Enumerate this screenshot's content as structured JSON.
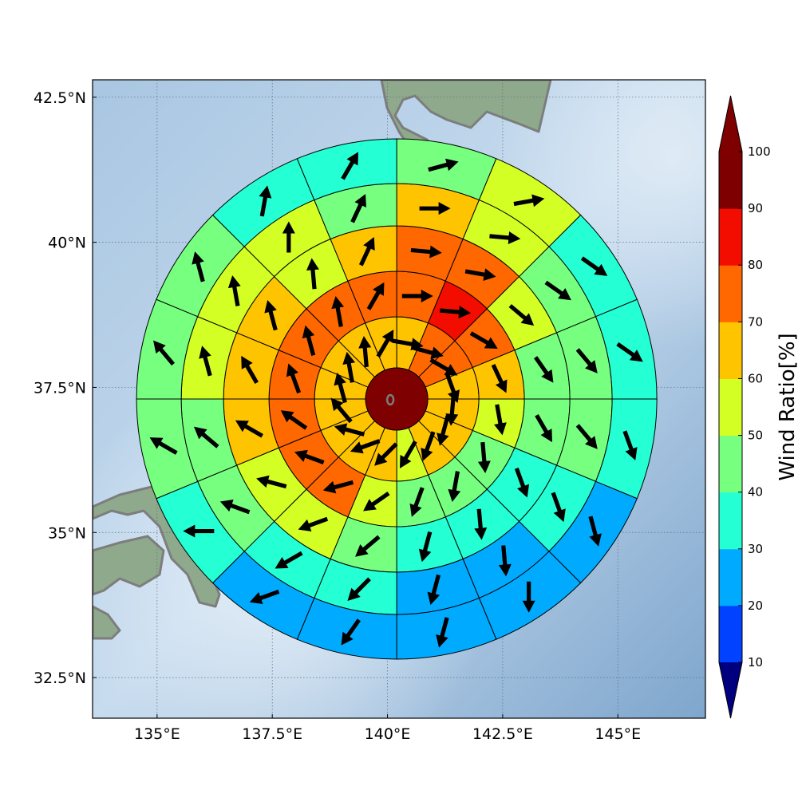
{
  "map": {
    "lon_range": [
      133.6,
      146.9
    ],
    "lat_range": [
      31.8,
      42.8
    ],
    "lon_ticks": [
      {
        "value": 135.0,
        "label": "135°E"
      },
      {
        "value": 137.5,
        "label": "137.5°E"
      },
      {
        "value": 140.0,
        "label": "140°E"
      },
      {
        "value": 142.5,
        "label": "142.5°E"
      },
      {
        "value": 145.0,
        "label": "145°E"
      }
    ],
    "lat_ticks": [
      {
        "value": 42.5,
        "label": "42.5°N"
      },
      {
        "value": 40.0,
        "label": "40°N"
      },
      {
        "value": 37.5,
        "label": "37.5°N"
      },
      {
        "value": 35.0,
        "label": "35°N"
      },
      {
        "value": 32.5,
        "label": "32.5°N"
      }
    ],
    "grid": true,
    "background": "shaded-relief",
    "colors": {
      "ocean_light": "#c9ddef",
      "ocean_dark": "#8aaed0",
      "land": "#8fa98c",
      "coastline": "#7d7d7d"
    }
  },
  "chart_data": {
    "type": "polar-sector-heatmap",
    "center": {
      "lon": 140.2,
      "lat": 37.3
    },
    "center_value": 100,
    "sectors": 16,
    "rings": [
      {
        "values": [
          65,
          70,
          70,
          62,
          62,
          62,
          65,
          55,
          62,
          60,
          62,
          65,
          62,
          62,
          62,
          62
        ],
        "arrows": [
          100,
          105,
          120,
          160,
          185,
          195,
          200,
          210,
          225,
          250,
          285,
          320,
          345,
          350,
          355,
          30
        ]
      },
      {
        "values": [
          75,
          80,
          70,
          62,
          52,
          45,
          45,
          45,
          55,
          70,
          75,
          75,
          70,
          75,
          75,
          75
        ],
        "arrows": [
          90,
          95,
          120,
          155,
          170,
          175,
          190,
          200,
          235,
          255,
          290,
          305,
          340,
          345,
          350,
          30
        ]
      },
      {
        "values": [
          75,
          75,
          50,
          45,
          45,
          35,
          35,
          35,
          45,
          55,
          55,
          62,
          62,
          62,
          52,
          62
        ],
        "arrows": [
          95,
          100,
          130,
          145,
          150,
          160,
          175,
          195,
          230,
          250,
          285,
          300,
          330,
          345,
          355,
          25
        ]
      },
      {
        "values": [
          65,
          55,
          45,
          45,
          45,
          35,
          25,
          25,
          35,
          35,
          45,
          45,
          55,
          52,
          52,
          45
        ],
        "arrows": [
          90,
          95,
          125,
          140,
          140,
          160,
          175,
          195,
          225,
          240,
          290,
          310,
          345,
          350,
          360,
          25
        ]
      },
      {
        "values": [
          45,
          55,
          35,
          35,
          35,
          25,
          25,
          25,
          25,
          25,
          35,
          45,
          45,
          45,
          35,
          35
        ],
        "arrows": [
          75,
          80,
          125,
          125,
          160,
          165,
          180,
          195,
          215,
          250,
          270,
          300,
          320,
          345,
          10,
          30
        ]
      }
    ],
    "colorbar": {
      "label": "Wind Ratio[%]",
      "ticks": [
        10,
        20,
        30,
        40,
        50,
        60,
        70,
        80,
        90,
        100
      ],
      "levels": [
        0,
        10,
        20,
        30,
        40,
        50,
        60,
        70,
        80,
        90,
        100
      ],
      "colors": [
        "#00007f",
        "#0000d8",
        "#0042ff",
        "#00aaff",
        "#24ffd4",
        "#77ff80",
        "#d4ff24",
        "#ffc400",
        "#ff6700",
        "#f20d00",
        "#7f0000"
      ],
      "extend": "both"
    }
  }
}
